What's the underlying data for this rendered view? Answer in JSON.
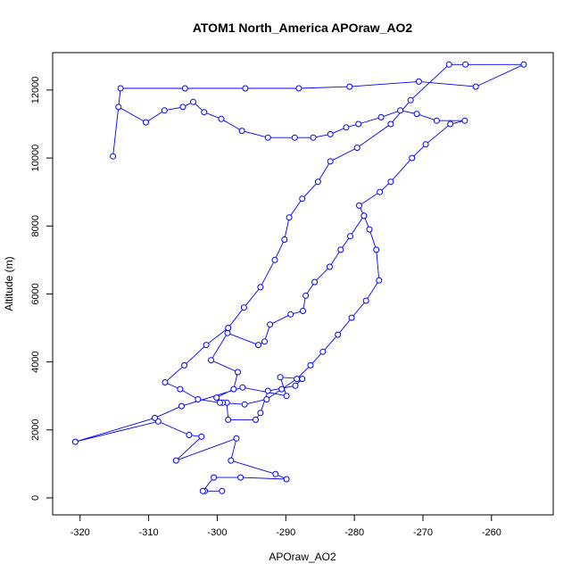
{
  "chart_data": {
    "type": "scatter",
    "title": "ATOM1 North_America APOraw_AO2",
    "xlabel": "APOraw_AO2",
    "ylabel": "Altitude (m)",
    "xlim": [
      -324,
      -251
    ],
    "ylim": [
      -500,
      13100
    ],
    "xticks": [
      -320,
      -310,
      -300,
      -290,
      -280,
      -270,
      -260
    ],
    "yticks": [
      0,
      2000,
      4000,
      6000,
      8000,
      10000,
      12000
    ],
    "series_color": "#0000ff",
    "markers": "open-circle",
    "connected": true,
    "series": [
      {
        "points": [
          [
            -299.3,
            200
          ],
          [
            -301.8,
            200
          ],
          [
            -302.1,
            200
          ],
          [
            -300.5,
            600
          ],
          [
            -296.6,
            600
          ],
          [
            -289.9,
            550
          ],
          [
            -291.5,
            700
          ],
          [
            -298.0,
            1100
          ],
          [
            -297.2,
            1750
          ],
          [
            -306.0,
            1100
          ],
          [
            -302.3,
            1800
          ],
          [
            -304.1,
            1850
          ],
          [
            -308.6,
            2250
          ],
          [
            -320.7,
            1650
          ],
          [
            -309.1,
            2350
          ],
          [
            -305.2,
            2700
          ],
          [
            -296.3,
            3250
          ],
          [
            -289.9,
            3000
          ],
          [
            -290.8,
            3550
          ],
          [
            -287.6,
            3500
          ],
          [
            -288.6,
            3300
          ],
          [
            -292.6,
            3150
          ],
          [
            -293.7,
            2500
          ],
          [
            -294.4,
            2300
          ],
          [
            -298.4,
            2300
          ],
          [
            -298.6,
            2800
          ],
          [
            -299.2,
            2800
          ],
          [
            -300.1,
            2950
          ],
          [
            -297.6,
            3200
          ],
          [
            -297.0,
            3700
          ],
          [
            -300.9,
            4050
          ],
          [
            -298.5,
            4850
          ],
          [
            -294.0,
            4500
          ],
          [
            -293.1,
            4600
          ],
          [
            -292.3,
            5100
          ],
          [
            -289.3,
            5400
          ],
          [
            -287.5,
            5500
          ],
          [
            -287.1,
            5950
          ],
          [
            -285.8,
            6350
          ],
          [
            -283.6,
            6800
          ],
          [
            -282.0,
            7300
          ],
          [
            -280.6,
            7700
          ],
          [
            -278.6,
            8300
          ],
          [
            -279.3,
            8600
          ],
          [
            -276.3,
            9000
          ],
          [
            -274.7,
            9300
          ],
          [
            -271.6,
            10000
          ],
          [
            -269.6,
            10400
          ],
          [
            -266.0,
            11000
          ],
          [
            -263.9,
            11100
          ],
          [
            -268.0,
            11100
          ],
          [
            -270.9,
            11300
          ],
          [
            -273.3,
            11400
          ],
          [
            -276.1,
            11200
          ],
          [
            -279.4,
            11000
          ],
          [
            -281.2,
            10900
          ],
          [
            -283.5,
            10700
          ],
          [
            -286.0,
            10600
          ],
          [
            -288.7,
            10600
          ],
          [
            -292.6,
            10600
          ],
          [
            -296.4,
            10800
          ],
          [
            -299.4,
            11150
          ],
          [
            -301.9,
            11350
          ],
          [
            -303.5,
            11650
          ],
          [
            -305.0,
            11500
          ],
          [
            -307.7,
            11400
          ],
          [
            -310.4,
            11050
          ],
          [
            -314.4,
            11500
          ],
          [
            -315.2,
            10050
          ],
          [
            -314.1,
            12050
          ],
          [
            -304.7,
            12050
          ],
          [
            -295.9,
            12050
          ],
          [
            -288.1,
            12050
          ],
          [
            -280.7,
            12100
          ],
          [
            -270.6,
            12250
          ],
          [
            -262.3,
            12100
          ],
          [
            -255.3,
            12750
          ],
          [
            -263.8,
            12750
          ],
          [
            -266.2,
            12750
          ],
          [
            -271.8,
            11700
          ],
          [
            -274.7,
            11000
          ],
          [
            -279.6,
            10300
          ],
          [
            -283.5,
            9900
          ],
          [
            -285.3,
            9300
          ],
          [
            -287.6,
            8800
          ],
          [
            -289.5,
            8250
          ],
          [
            -290.2,
            7600
          ],
          [
            -291.6,
            7000
          ],
          [
            -293.7,
            6200
          ],
          [
            -296.1,
            5600
          ],
          [
            -298.4,
            5000
          ],
          [
            -301.6,
            4500
          ],
          [
            -304.8,
            3900
          ],
          [
            -307.6,
            3400
          ],
          [
            -305.4,
            3200
          ],
          [
            -302.8,
            2900
          ],
          [
            -299.6,
            2800
          ],
          [
            -296.0,
            2750
          ],
          [
            -292.8,
            2900
          ],
          [
            -290.6,
            3200
          ],
          [
            -288.4,
            3500
          ],
          [
            -286.4,
            3900
          ],
          [
            -284.6,
            4300
          ],
          [
            -282.4,
            4800
          ],
          [
            -280.4,
            5300
          ],
          [
            -278.3,
            5800
          ],
          [
            -276.4,
            6400
          ],
          [
            -276.8,
            7300
          ],
          [
            -277.8,
            7900
          ],
          [
            -278.6,
            8300
          ]
        ]
      }
    ]
  }
}
